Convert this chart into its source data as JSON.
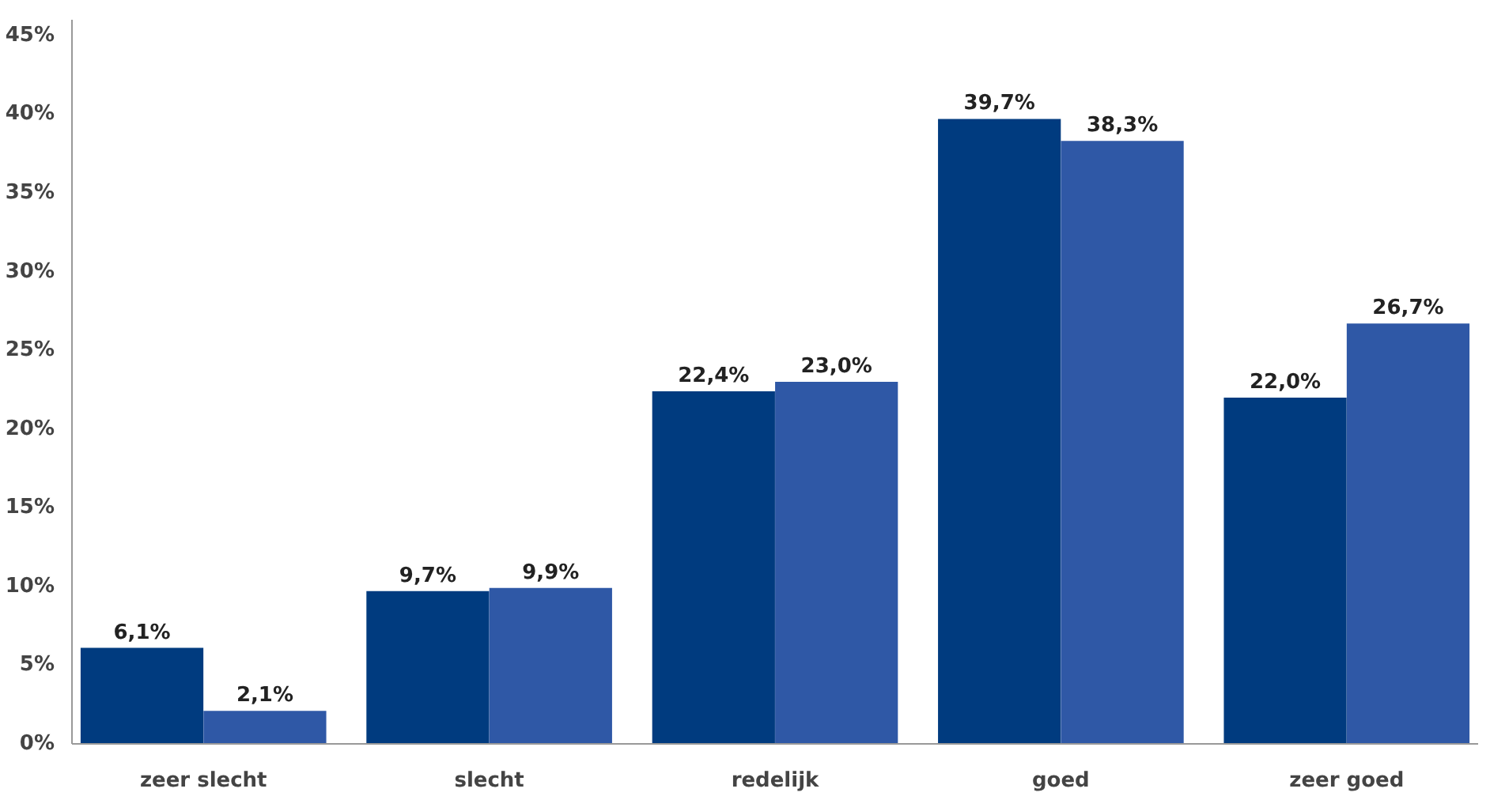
{
  "chart_data": {
    "type": "bar",
    "categories": [
      "zeer slecht",
      "slecht",
      "redelijk",
      "goed",
      "zeer goed"
    ],
    "series": [
      {
        "color": "#003b7f",
        "values": [
          6.1,
          9.7,
          22.4,
          39.7,
          22.0
        ],
        "value_labels": [
          "6,1%",
          "9,7%",
          "22,4%",
          "39,7%",
          "22,0%"
        ]
      },
      {
        "color": "#2f58a6",
        "values": [
          2.1,
          9.9,
          23.0,
          38.3,
          26.7
        ],
        "value_labels": [
          "2,1%",
          "9,9%",
          "23,0%",
          "38,3%",
          "26,7%"
        ]
      }
    ],
    "ylim": [
      0,
      46
    ],
    "yticks": [
      {
        "value": 0,
        "label": "0%"
      },
      {
        "value": 5,
        "label": "5%"
      },
      {
        "value": 10,
        "label": "10%"
      },
      {
        "value": 15,
        "label": "15%"
      },
      {
        "value": 20,
        "label": "20%"
      },
      {
        "value": 25,
        "label": "25%"
      },
      {
        "value": 30,
        "label": "30%"
      },
      {
        "value": 35,
        "label": "35%"
      },
      {
        "value": 40,
        "label": "40%"
      },
      {
        "value": 45,
        "label": "45%"
      }
    ],
    "grid": false
  }
}
